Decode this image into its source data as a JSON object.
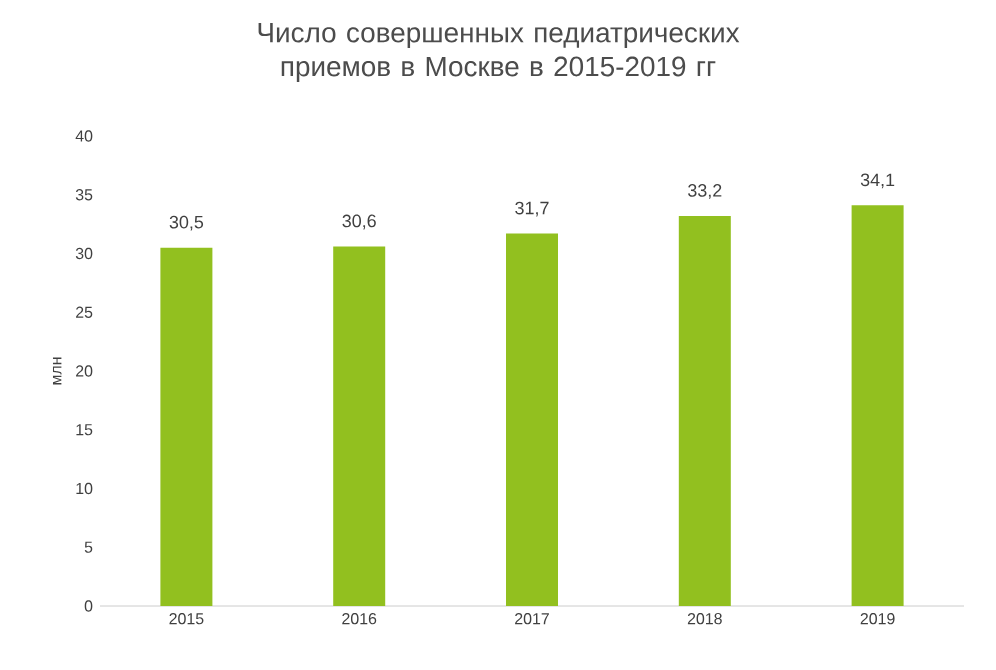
{
  "chart_data": {
    "type": "bar",
    "title": "Число совершенных педиатрических приемов  в Москве в 2015-2019 гг",
    "ylabel": "млн",
    "categories": [
      "2015",
      "2016",
      "2017",
      "2018",
      "2019"
    ],
    "values": [
      30.5,
      30.6,
      31.7,
      33.2,
      34.1
    ],
    "value_labels": [
      "30,5",
      "30,6",
      "31,7",
      "33,2",
      "34,1"
    ],
    "color": "#92c01f",
    "ylim": [
      0,
      40
    ],
    "yticks": [
      0,
      5,
      10,
      15,
      20,
      25,
      30,
      35,
      40
    ]
  }
}
